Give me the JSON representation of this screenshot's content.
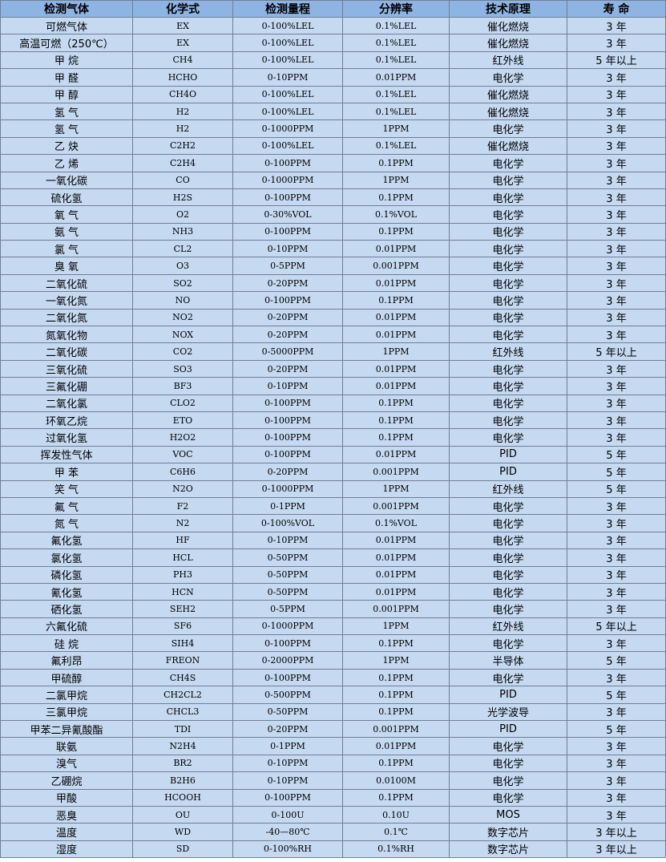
{
  "table": {
    "headers": [
      "检测气体",
      "化学式",
      "检测量程",
      "分辨率",
      "技术原理",
      "寿 命"
    ],
    "rows": [
      [
        "可燃气体",
        "EX",
        "0-100%LEL",
        "0.1%LEL",
        "催化燃烧",
        "3 年"
      ],
      [
        "高温可燃（250℃）",
        "EX",
        "0-100%LEL",
        "0.1%LEL",
        "催化燃烧",
        "3 年"
      ],
      [
        "甲 烷",
        "CH4",
        "0-100%LEL",
        "0.1%LEL",
        "红外线",
        "5 年以上"
      ],
      [
        "甲 醛",
        "HCHO",
        "0-10PPM",
        "0.01PPM",
        "电化学",
        "3 年"
      ],
      [
        "甲 醇",
        "CH4O",
        "0-100%LEL",
        "0.1%LEL",
        "催化燃烧",
        "3 年"
      ],
      [
        "氢 气",
        "H2",
        "0-100%LEL",
        "0.1%LEL",
        "催化燃烧",
        "3 年"
      ],
      [
        "氢 气",
        "H2",
        "0-1000PPM",
        "1PPM",
        "电化学",
        "3 年"
      ],
      [
        "乙 炔",
        "C2H2",
        "0-100%LEL",
        "0.1%LEL",
        "催化燃烧",
        "3 年"
      ],
      [
        "乙 烯",
        "C2H4",
        "0-100PPM",
        "0.1PPM",
        "电化学",
        "3 年"
      ],
      [
        "一氧化碳",
        "CO",
        "0-1000PPM",
        "1PPM",
        "电化学",
        "3 年"
      ],
      [
        "硫化氢",
        "H2S",
        "0-100PPM",
        "0.1PPM",
        "电化学",
        "3 年"
      ],
      [
        "氧 气",
        "O2",
        "0-30%VOL",
        "0.1%VOL",
        "电化学",
        "3 年"
      ],
      [
        "氨 气",
        "NH3",
        "0-100PPM",
        "0.1PPM",
        "电化学",
        "3 年"
      ],
      [
        "氯 气",
        "CL2",
        "0-10PPM",
        "0.01PPM",
        "电化学",
        "3 年"
      ],
      [
        "臭 氧",
        "O3",
        "0-5PPM",
        "0.001PPM",
        "电化学",
        "3 年"
      ],
      [
        "二氧化硫",
        "SO2",
        "0-20PPM",
        "0.01PPM",
        "电化学",
        "3 年"
      ],
      [
        "一氧化氮",
        "NO",
        "0-100PPM",
        "0.1PPM",
        "电化学",
        "3 年"
      ],
      [
        "二氧化氮",
        "NO2",
        "0-20PPM",
        "0.01PPM",
        "电化学",
        "3 年"
      ],
      [
        "氮氧化物",
        "NOX",
        "0-20PPM",
        "0.01PPM",
        "电化学",
        "3 年"
      ],
      [
        "二氧化碳",
        "CO2",
        "0-5000PPM",
        "1PPM",
        "红外线",
        "5 年以上"
      ],
      [
        "三氧化硫",
        "SO3",
        "0-20PPM",
        "0.01PPM",
        "电化学",
        "3 年"
      ],
      [
        "三氟化硼",
        "BF3",
        "0-10PPM",
        "0.01PPM",
        "电化学",
        "3 年"
      ],
      [
        "二氧化氯",
        "CLO2",
        "0-100PPM",
        "0.1PPM",
        "电化学",
        "3 年"
      ],
      [
        "环氧乙烷",
        "ETO",
        "0-100PPM",
        "0.1PPM",
        "电化学",
        "3 年"
      ],
      [
        "过氧化氢",
        "H2O2",
        "0-100PPM",
        "0.1PPM",
        "电化学",
        "3 年"
      ],
      [
        "挥发性气体",
        "VOC",
        "0-100PPM",
        "0.01PPM",
        "PID",
        "5 年"
      ],
      [
        "甲 苯",
        "C6H6",
        "0-20PPM",
        "0.001PPM",
        "PID",
        "5 年"
      ],
      [
        "笑 气",
        "N2O",
        "0-1000PPM",
        "1PPM",
        "红外线",
        "5 年"
      ],
      [
        "氟 气",
        "F2",
        "0-1PPM",
        "0.001PPM",
        "电化学",
        "3 年"
      ],
      [
        "氮 气",
        "N2",
        "0-100%VOL",
        "0.1%VOL",
        "电化学",
        "3 年"
      ],
      [
        "氟化氢",
        "HF",
        "0-10PPM",
        "0.01PPM",
        "电化学",
        "3 年"
      ],
      [
        "氯化氢",
        "HCL",
        "0-50PPM",
        "0.01PPM",
        "电化学",
        "3 年"
      ],
      [
        "磷化氢",
        "PH3",
        "0-50PPM",
        "0.01PPM",
        "电化学",
        "3 年"
      ],
      [
        "氰化氢",
        "HCN",
        "0-50PPM",
        "0.01PPM",
        "电化学",
        "3 年"
      ],
      [
        "硒化氢",
        "SEH2",
        "0-5PPM",
        "0.001PPM",
        "电化学",
        "3 年"
      ],
      [
        "六氟化硫",
        "SF6",
        "0-1000PPM",
        "1PPM",
        "红外线",
        "5 年以上"
      ],
      [
        "硅 烷",
        "SIH4",
        "0-100PPM",
        "0.1PPM",
        "电化学",
        "3 年"
      ],
      [
        "氟利昂",
        "FREON",
        "0-2000PPM",
        "1PPM",
        "半导体",
        "5 年"
      ],
      [
        "甲硫醇",
        "CH4S",
        "0-100PPM",
        "0.1PPM",
        "电化学",
        "3 年"
      ],
      [
        "二氯甲烷",
        "CH2CL2",
        "0-500PPM",
        "0.1PPM",
        "PID",
        "5 年"
      ],
      [
        "三氯甲烷",
        "CHCL3",
        "0-50PPM",
        "0.1PPM",
        "光学波导",
        "3 年"
      ],
      [
        "甲苯二异氰酸酯",
        "TDI",
        "0-20PPM",
        "0.001PPM",
        "PID",
        "5 年"
      ],
      [
        "联氨",
        "N2H4",
        "0-1PPM",
        "0.01PPM",
        "电化学",
        "3 年"
      ],
      [
        "溴气",
        "BR2",
        "0-10PPM",
        "0.1PPM",
        "电化学",
        "3 年"
      ],
      [
        "乙硼烷",
        "B2H6",
        "0-10PPM",
        "0.0100M",
        "电化学",
        "3 年"
      ],
      [
        "甲酸",
        "HCOOH",
        "0-100PPM",
        "0.1PPM",
        "电化学",
        "3 年"
      ],
      [
        "恶臭",
        "OU",
        "0-100U",
        "0.10U",
        "MOS",
        "3 年"
      ],
      [
        "温度",
        "WD",
        "-40—80℃",
        "0.1℃",
        "数字芯片",
        "3 年以上"
      ],
      [
        "湿度",
        "SD",
        "0-100%RH",
        "0.1%RH",
        "数字芯片",
        "3 年以上"
      ]
    ]
  },
  "colors": {
    "header_bg": "#8db4e2",
    "row_bg": "#c5d9f1",
    "border": "#6f7f95"
  }
}
